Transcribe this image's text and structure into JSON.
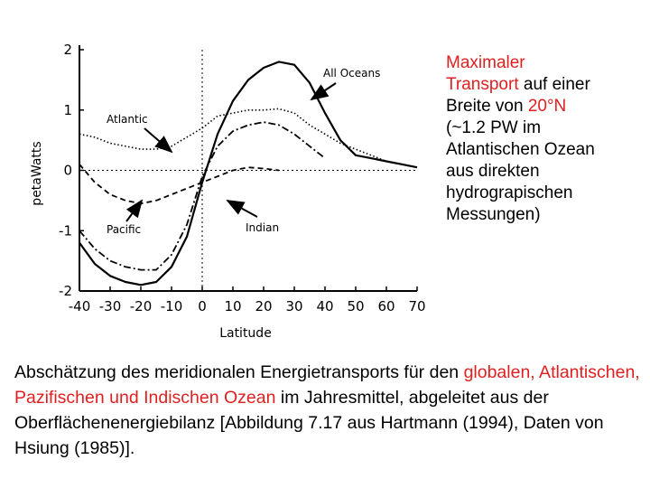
{
  "side_text": {
    "line1_red": "Maximaler",
    "line2_red": "Transport",
    "line2_rest": " auf einer",
    "line3_pre": "Breite von ",
    "line3_red": "20°N",
    "line4": "(~1.2 PW im",
    "line5": "Atlantischen Ozean",
    "line6": "aus direkten",
    "line7": "hydrograpischen",
    "line8": "Messungen)"
  },
  "caption": {
    "part1": "Abschätzung des meridionalen Energietransports für den",
    "part2_red": "globalen, Atlantischen, Pazifischen und Indischen Ozean",
    "part3": " im Jahresmittel, abgeleitet aus der Oberflächenenergiebilanz [Abbildung 7.17 aus Hartmann (1994), Daten von Hsiung (1985)]."
  },
  "chart_data": {
    "type": "line",
    "xlabel": "Latitude",
    "ylabel": "petaWatts",
    "xlim": [
      -40,
      70
    ],
    "ylim": [
      -2,
      2
    ],
    "x_ticks": [
      "-40",
      "-30",
      "-20",
      "-10",
      "0",
      "10",
      "20",
      "30",
      "40",
      "50",
      "60",
      "70"
    ],
    "y_ticks": [
      "2",
      "1",
      "0",
      "-1",
      "-2"
    ],
    "series": [
      {
        "name": "All Oceans",
        "style": "solid",
        "x": [
          -40,
          -35,
          -30,
          -25,
          -20,
          -15,
          -10,
          -5,
          0,
          5,
          10,
          15,
          20,
          25,
          30,
          35,
          40,
          45,
          50,
          55,
          60,
          65,
          70
        ],
        "y": [
          -1.2,
          -1.55,
          -1.75,
          -1.85,
          -1.9,
          -1.85,
          -1.6,
          -1.1,
          -0.2,
          0.6,
          1.15,
          1.5,
          1.7,
          1.8,
          1.75,
          1.45,
          0.95,
          0.5,
          0.25,
          0.2,
          0.15,
          0.1,
          0.05
        ]
      },
      {
        "name": "Atlantic",
        "style": "dotted",
        "x": [
          -40,
          -35,
          -30,
          -25,
          -20,
          -15,
          -10,
          -5,
          0,
          5,
          10,
          15,
          20,
          25,
          30,
          35,
          40,
          45,
          50,
          55,
          60,
          65,
          70
        ],
        "y": [
          0.6,
          0.55,
          0.45,
          0.4,
          0.35,
          0.35,
          0.4,
          0.55,
          0.7,
          0.9,
          0.95,
          1.0,
          1.0,
          1.02,
          0.95,
          0.75,
          0.6,
          0.45,
          0.35,
          0.25,
          0.15,
          0.1,
          0.05
        ]
      },
      {
        "name": "Pacific",
        "style": "dashdot",
        "x": [
          -40,
          -35,
          -30,
          -25,
          -20,
          -15,
          -10,
          -5,
          0,
          5,
          10,
          15,
          20,
          25,
          30,
          35,
          40
        ],
        "y": [
          -1.0,
          -1.3,
          -1.5,
          -1.6,
          -1.65,
          -1.65,
          -1.4,
          -0.9,
          -0.1,
          0.4,
          0.65,
          0.75,
          0.8,
          0.75,
          0.6,
          0.4,
          0.2
        ]
      },
      {
        "name": "Indian",
        "style": "dashed",
        "x": [
          -40,
          -35,
          -30,
          -25,
          -20,
          -15,
          -10,
          -5,
          0,
          5,
          10,
          15,
          20,
          25
        ],
        "y": [
          0.1,
          -0.2,
          -0.4,
          -0.5,
          -0.55,
          -0.5,
          -0.4,
          -0.3,
          -0.2,
          -0.1,
          0.0,
          0.05,
          0.03,
          0.0
        ]
      }
    ],
    "annotations": [
      "All Oceans",
      "Atlantic",
      "Pacific",
      "Indian"
    ]
  }
}
